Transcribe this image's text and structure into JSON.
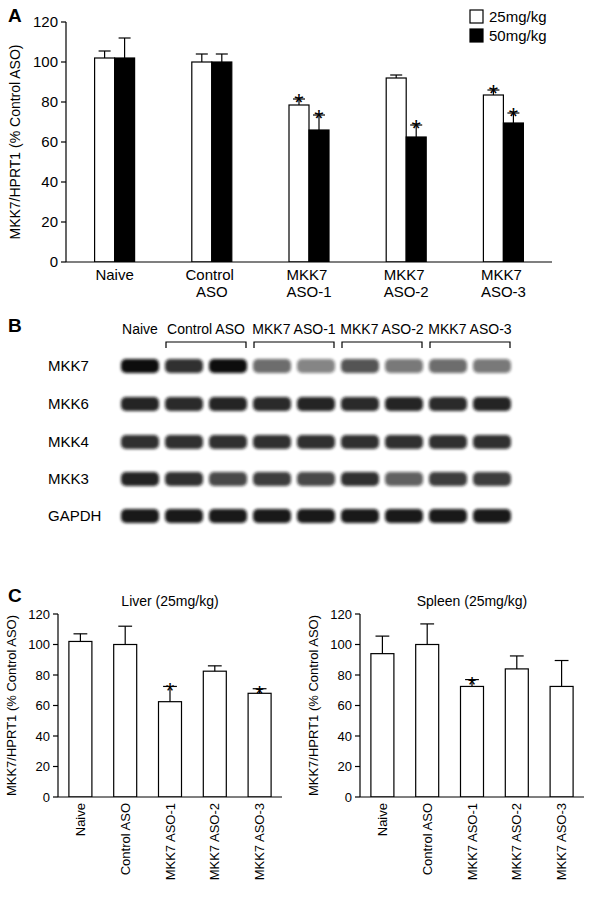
{
  "panel_labels": [
    "A",
    "B",
    "C"
  ],
  "chart_data": [
    {
      "type": "bar",
      "y_label": "MKK7/HPRT1 (% Control ASO)",
      "categories": [
        "Naive",
        "Control ASO",
        "MKK7 ASO-1",
        "MKK7 ASO-2",
        "MKK7 ASO-3"
      ],
      "series": [
        {
          "name": "25mg/kg",
          "color": "#ffffff",
          "values": [
            102,
            100,
            78.5,
            92,
            83.5
          ],
          "errors": [
            3.5,
            4,
            3,
            1.5,
            2.5
          ],
          "annotations": [
            null,
            null,
            "*",
            null,
            "*"
          ]
        },
        {
          "name": "50mg/kg",
          "color": "#000000",
          "values": [
            102,
            100,
            66,
            62.5,
            69.5
          ],
          "errors": [
            10,
            4,
            7.5,
            6,
            5
          ],
          "annotations": [
            null,
            null,
            "*",
            "*",
            "*"
          ]
        }
      ],
      "ylim": [
        0,
        120
      ],
      "yticks": [
        0,
        20,
        40,
        60,
        80,
        100,
        120
      ],
      "legend": "top-right"
    },
    {
      "type": "bar",
      "title": "Liver (25mg/kg)",
      "y_label": "MKK7/HPRT1 (% Control ASO)",
      "categories": [
        "Naive",
        "Control ASO",
        "MKK7 ASO-1",
        "MKK7 ASO-2",
        "MKK7 ASO-3"
      ],
      "series": [
        {
          "color": "#ffffff",
          "values": [
            102,
            100,
            62.5,
            82.5,
            68
          ],
          "errors": [
            5,
            12,
            10,
            3.5,
            3
          ],
          "annotations": [
            null,
            null,
            "*",
            null,
            "*"
          ]
        }
      ],
      "ylim": [
        0,
        120
      ],
      "yticks": [
        0,
        20,
        40,
        60,
        80,
        100,
        120
      ]
    },
    {
      "type": "bar",
      "title": "Spleen (25mg/kg)",
      "y_label": "MKK7/HPRT1 (% Control ASO)",
      "categories": [
        "Naive",
        "Control ASO",
        "MKK7 ASO-1",
        "MKK7 ASO-2",
        "MKK7 ASO-3"
      ],
      "series": [
        {
          "color": "#ffffff",
          "values": [
            94,
            100,
            72.5,
            84,
            72.5
          ],
          "errors": [
            11.5,
            13.5,
            4.5,
            8.5,
            17
          ],
          "annotations": [
            null,
            null,
            "*",
            null,
            null
          ]
        }
      ],
      "ylim": [
        0,
        120
      ],
      "yticks": [
        0,
        20,
        40,
        60,
        80,
        100,
        120
      ]
    }
  ],
  "blot": {
    "groups": [
      {
        "label": "Naive",
        "lanes": 1
      },
      {
        "label": "Control ASO",
        "lanes": 2
      },
      {
        "label": "MKK7 ASO-1",
        "lanes": 2
      },
      {
        "label": "MKK7 ASO-2",
        "lanes": 2
      },
      {
        "label": "MKK7 ASO-3",
        "lanes": 2
      }
    ],
    "rows": [
      {
        "label": "MKK7",
        "intensity": [
          1.0,
          0.85,
          1.0,
          0.6,
          0.5,
          0.7,
          0.55,
          0.6,
          0.55
        ]
      },
      {
        "label": "MKK6",
        "intensity": [
          0.9,
          0.88,
          0.9,
          0.88,
          0.9,
          0.88,
          0.9,
          0.88,
          0.9
        ]
      },
      {
        "label": "MKK4",
        "intensity": [
          0.85,
          0.85,
          0.85,
          0.85,
          0.85,
          0.85,
          0.85,
          0.85,
          0.85
        ]
      },
      {
        "label": "MKK3",
        "intensity": [
          0.9,
          0.85,
          0.75,
          0.8,
          0.75,
          0.85,
          0.65,
          0.8,
          0.8
        ]
      },
      {
        "label": "GAPDH",
        "intensity": [
          0.95,
          0.95,
          0.95,
          0.95,
          0.95,
          0.95,
          0.95,
          0.95,
          0.95
        ]
      }
    ]
  }
}
